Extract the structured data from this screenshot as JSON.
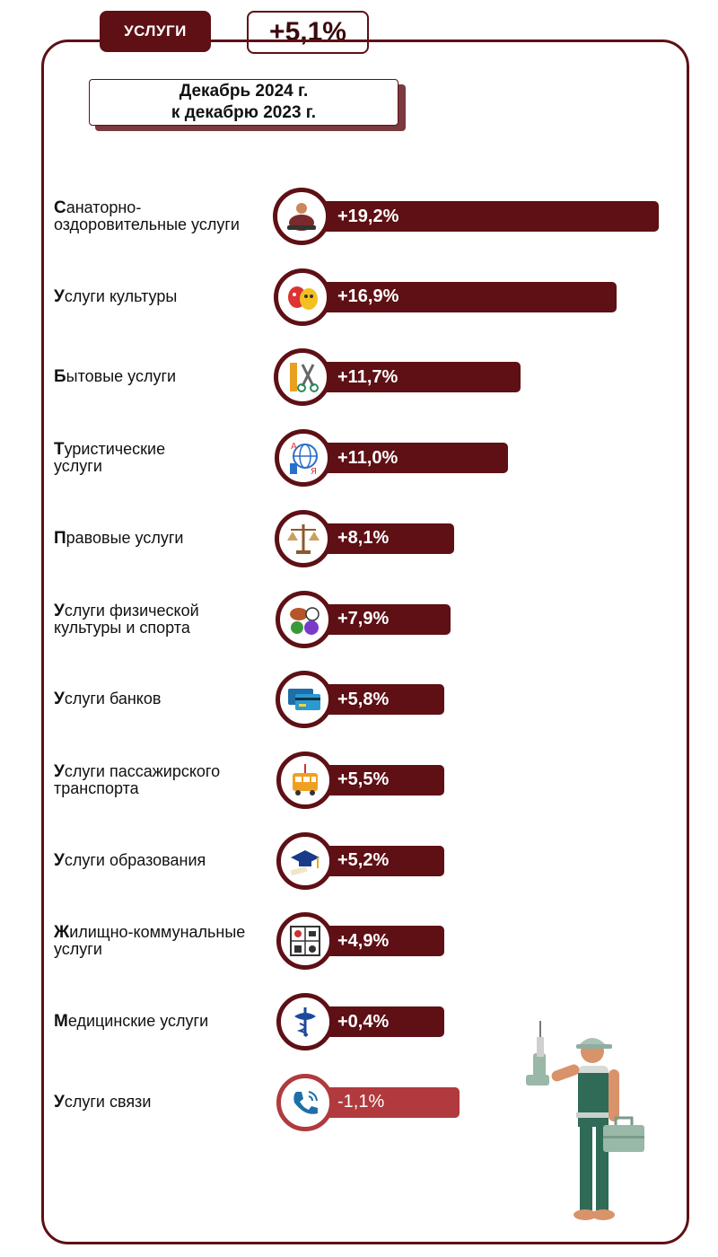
{
  "header": {
    "category_label": "УСЛУГИ",
    "total_change": "+5,1%",
    "period_line1": "Декабрь 2024 г.",
    "period_line2": "к декабрю 2023 г."
  },
  "colors": {
    "bar_positive": "#5e1015",
    "bar_negative": "#b03a3d",
    "accent": "#5e1015"
  },
  "chart_data": {
    "type": "bar",
    "orientation": "horizontal",
    "unit": "%",
    "categories": [
      "Санаторно-оздоровительные услуги",
      "Услуги культуры",
      "Бытовые услуги",
      "Туристические услуги",
      "Правовые услуги",
      "Услуги физической культуры и спорта",
      "Услуги банков",
      "Услуги пассажирского транспорта",
      "Услуги образования",
      "Жилищно-коммунальные услуги",
      "Медицинские услуги",
      "Услуги связи"
    ],
    "label_lines": [
      [
        "Санаторно-",
        "оздоровительные услуги"
      ],
      [
        "Услуги культуры"
      ],
      [
        "Бытовые услуги"
      ],
      [
        "Туристические",
        "услуги"
      ],
      [
        "Правовые услуги"
      ],
      [
        "Услуги физической",
        "культуры и спорта"
      ],
      [
        "Услуги банков"
      ],
      [
        "Услуги пассажирского",
        "транспорта"
      ],
      [
        "Услуги образования"
      ],
      [
        "Жилищно-коммунальные",
        "услуги"
      ],
      [
        "Медицинские услуги"
      ],
      [
        "Услуги связи"
      ]
    ],
    "values": [
      19.2,
      16.9,
      11.7,
      11.0,
      8.1,
      7.9,
      5.8,
      5.5,
      5.2,
      4.9,
      0.4,
      -1.1
    ],
    "value_labels": [
      "+19,2%",
      "+16,9%",
      "+11,7%",
      "+11,0%",
      "+8,1%",
      "+7,9%",
      "+5,8%",
      "+5,5%",
      "+5,2%",
      "+4,9%",
      "+0,4%",
      "-1,1%"
    ],
    "icons": [
      "massage-icon",
      "theater-masks-icon",
      "scissors-comb-icon",
      "globe-traveler-icon",
      "scales-icon",
      "sports-balls-icon",
      "bank-card-icon",
      "tram-icon",
      "graduation-cap-icon",
      "utilities-icon",
      "medicine-icon",
      "phone-icon"
    ]
  }
}
